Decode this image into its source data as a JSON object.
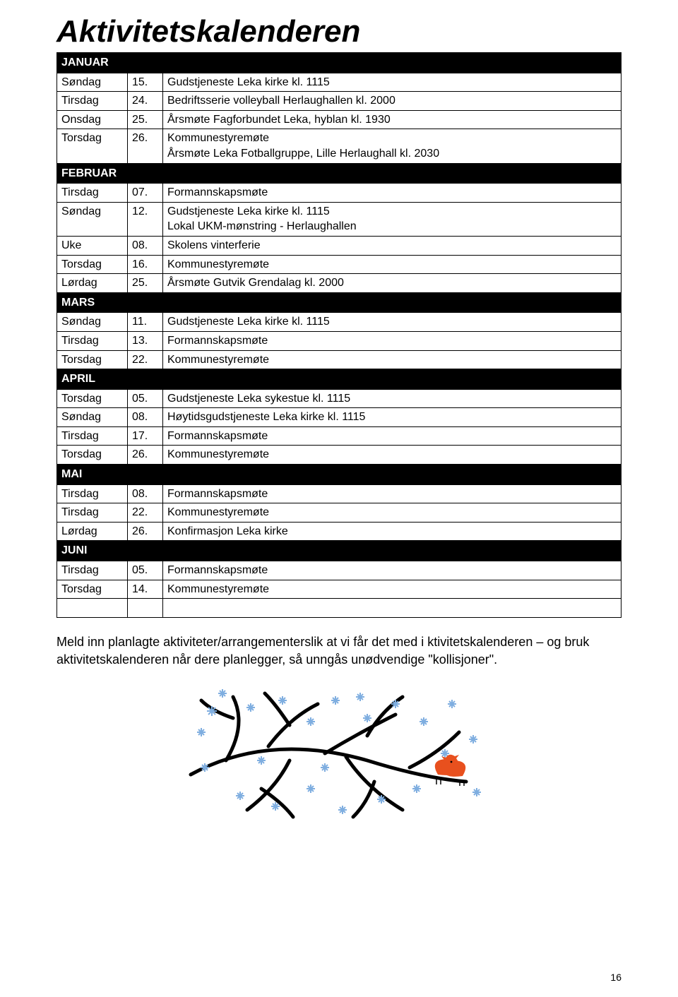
{
  "title": "Aktivitetskalenderen",
  "months": [
    {
      "name": "JANUAR",
      "rows": [
        {
          "day": "Søndag",
          "num": "15.",
          "desc": "Gudstjeneste Leka kirke kl. 1115"
        },
        {
          "day": "Tirsdag",
          "num": "24.",
          "desc": "Bedriftsserie volleyball Herlaughallen kl. 2000"
        },
        {
          "day": "Onsdag",
          "num": "25.",
          "desc": "Årsmøte Fagforbundet Leka, hyblan kl. 1930"
        },
        {
          "day": "Torsdag",
          "num": "26.",
          "desc": "Kommunestyremøte\nÅrsmøte Leka Fotballgruppe, Lille Herlaughall kl. 2030"
        }
      ]
    },
    {
      "name": "FEBRUAR",
      "rows": [
        {
          "day": "Tirsdag",
          "num": "07.",
          "desc": "Formannskapsmøte"
        },
        {
          "day": "Søndag",
          "num": "12.",
          "desc": "Gudstjeneste Leka kirke kl. 1115\nLokal UKM-mønstring - Herlaughallen"
        },
        {
          "day": "Uke",
          "num": "08.",
          "desc": "Skolens vinterferie"
        },
        {
          "day": "Torsdag",
          "num": "16.",
          "desc": "Kommunestyremøte"
        },
        {
          "day": "Lørdag",
          "num": "25.",
          "desc": "Årsmøte Gutvik Grendalag kl. 2000"
        }
      ]
    },
    {
      "name": "MARS",
      "rows": [
        {
          "day": "Søndag",
          "num": "11.",
          "desc": "Gudstjeneste Leka kirke kl. 1115"
        },
        {
          "day": "Tirsdag",
          "num": "13.",
          "desc": "Formannskapsmøte"
        },
        {
          "day": "Torsdag",
          "num": "22.",
          "desc": "Kommunestyremøte"
        }
      ]
    },
    {
      "name": "APRIL",
      "rows": [
        {
          "day": "Torsdag",
          "num": "05.",
          "desc": "Gudstjeneste Leka sykestue kl. 1115"
        },
        {
          "day": "Søndag",
          "num": "08.",
          "desc": "Høytidsgudstjeneste Leka kirke kl. 1115"
        },
        {
          "day": "Tirsdag",
          "num": "17.",
          "desc": "Formannskapsmøte"
        },
        {
          "day": "Torsdag",
          "num": "26.",
          "desc": "Kommunestyremøte"
        }
      ]
    },
    {
      "name": "MAI",
      "rows": [
        {
          "day": "Tirsdag",
          "num": "08.",
          "desc": "Formannskapsmøte"
        },
        {
          "day": "Tirsdag",
          "num": "22.",
          "desc": "Kommunestyremøte"
        },
        {
          "day": "Lørdag",
          "num": "26.",
          "desc": "Konfirmasjon Leka kirke"
        }
      ]
    },
    {
      "name": "JUNI",
      "rows": [
        {
          "day": "Tirsdag",
          "num": "05.",
          "desc": "Formannskapsmøte"
        },
        {
          "day": "Torsdag",
          "num": "14.",
          "desc": "Kommunestyremøte"
        },
        {
          "day": "",
          "num": "",
          "desc": ""
        }
      ]
    }
  ],
  "footer": "Meld inn planlagte aktiviteter/arrangementerslik at vi får det med i ktivitetskalenderen – og bruk aktivitetskalenderen når dere planlegger, så unngås unødvendige \"kollisjoner\".",
  "page_number": "16",
  "colors": {
    "header_bg": "#000000",
    "header_fg": "#ffffff",
    "border": "#000000",
    "text": "#000000",
    "bird": "#e8501e",
    "snowflake": "#7faee0"
  }
}
